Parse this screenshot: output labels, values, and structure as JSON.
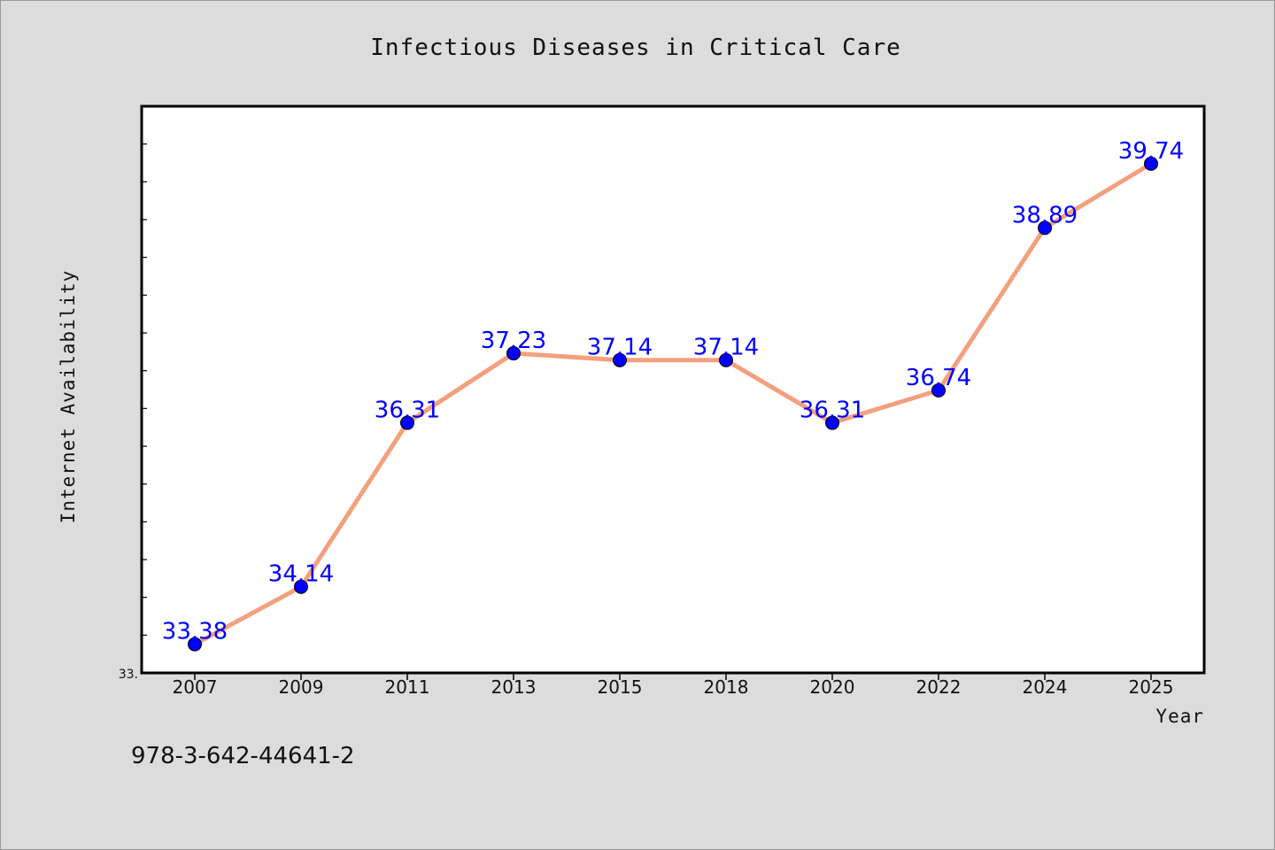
{
  "chart_data": {
    "type": "line",
    "title": "Infectious Diseases in Critical Care",
    "xlabel": "Year",
    "ylabel": "Internet Availability",
    "categories": [
      "2007",
      "2009",
      "2011",
      "2013",
      "2015",
      "2018",
      "2020",
      "2022",
      "2024",
      "2025"
    ],
    "series": [
      {
        "values": [
          33.38,
          34.14,
          36.31,
          37.23,
          37.14,
          37.14,
          36.31,
          36.74,
          38.89,
          39.74
        ],
        "labels": [
          "33.38",
          "34.14",
          "36.31",
          "37.23",
          "37.14",
          "37.14",
          "36.31",
          "36.74",
          "38.89",
          "39.74"
        ]
      }
    ],
    "ylim": [
      33.0,
      40.5
    ],
    "y_min_tick_label": "33.",
    "grid": false,
    "legend": "none",
    "colors": {
      "line": "#f4a07e",
      "marker": "#0000ff",
      "data_label": "#0000ff",
      "background": "#dcdcdc",
      "plot_bg": "#ffffff"
    }
  },
  "footer": {
    "code": "978-3-642-44641-2"
  }
}
